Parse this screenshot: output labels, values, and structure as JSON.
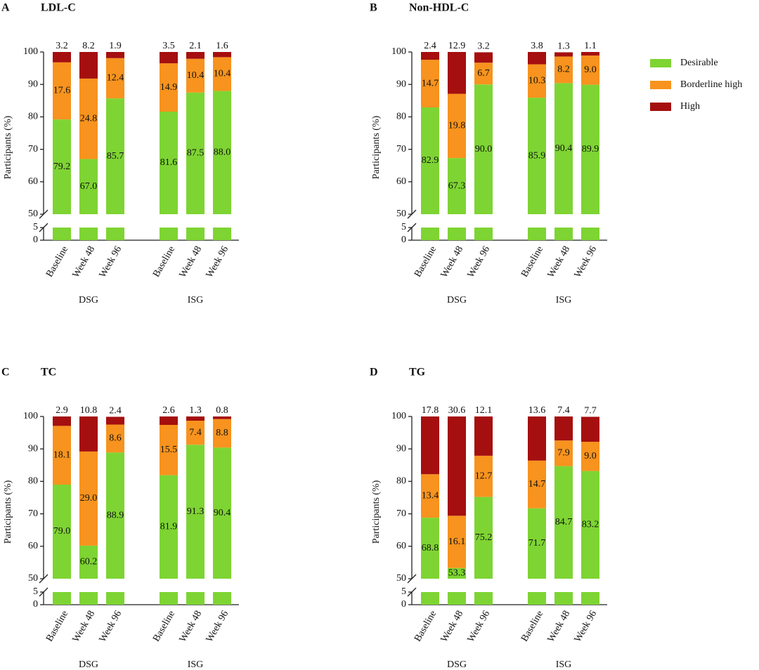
{
  "legend": [
    {
      "name": "Desirable",
      "color": "#7ed433"
    },
    {
      "name": "Borderline high",
      "color": "#f7931e"
    },
    {
      "name": "High",
      "color": "#a50f0f"
    }
  ],
  "chart_data": [
    {
      "type": "bar",
      "stacked": true,
      "panel": "A",
      "title": "LDL-C",
      "ylabel": "Participants (%)",
      "categories": [
        "Baseline",
        "Week 48",
        "Week 96",
        "Baseline",
        "Week 48",
        "Week 96"
      ],
      "groups": [
        "DSG",
        "ISG"
      ],
      "ylim": [
        0,
        100
      ],
      "ybreak": [
        5,
        50
      ],
      "yticks": [
        0,
        5,
        50,
        60,
        70,
        80,
        90,
        100
      ],
      "series": [
        {
          "color": "#7ed433",
          "values": [
            79.2,
            67.0,
            85.7,
            81.6,
            87.5,
            88.0
          ],
          "value_labels": [
            "79.2",
            "67.0",
            "85.7",
            "81.6",
            "87.5",
            "88.0"
          ]
        },
        {
          "color": "#f7931e",
          "values": [
            17.6,
            24.8,
            12.4,
            14.9,
            10.4,
            10.4
          ],
          "value_labels": [
            "17.6",
            "24.8",
            "12.4",
            "14.9",
            "10.4",
            "10.4"
          ]
        },
        {
          "color": "#a50f0f",
          "values": [
            3.2,
            8.2,
            1.9,
            3.5,
            2.1,
            1.6
          ],
          "value_labels": [
            "3.2",
            "8.2",
            "1.9",
            "3.5",
            "2.1",
            "1.6"
          ]
        }
      ]
    },
    {
      "type": "bar",
      "stacked": true,
      "panel": "B",
      "title": "Non-HDL-C",
      "ylabel": "Participants (%)",
      "categories": [
        "Baseline",
        "Week 48",
        "Week 96",
        "Baseline",
        "Week 48",
        "Week 96"
      ],
      "groups": [
        "DSG",
        "ISG"
      ],
      "ylim": [
        0,
        100
      ],
      "ybreak": [
        5,
        50
      ],
      "yticks": [
        0,
        5,
        50,
        60,
        70,
        80,
        90,
        100
      ],
      "series": [
        {
          "color": "#7ed433",
          "values": [
            82.9,
            67.3,
            90.0,
            85.9,
            90.4,
            89.9
          ],
          "value_labels": [
            "82.9",
            "67.3",
            "90.0",
            "85.9",
            "90.4",
            "89.9"
          ]
        },
        {
          "color": "#f7931e",
          "values": [
            14.7,
            19.8,
            6.7,
            10.3,
            8.2,
            9.0
          ],
          "value_labels": [
            "14.7",
            "19.8",
            "6.7",
            "10.3",
            "8.2",
            "9.0"
          ]
        },
        {
          "color": "#a50f0f",
          "values": [
            2.4,
            12.9,
            3.2,
            3.8,
            1.3,
            1.1
          ],
          "value_labels": [
            "2.4",
            "12.9",
            "3.2",
            "3.8",
            "1.3",
            "1.1"
          ]
        }
      ]
    },
    {
      "type": "bar",
      "stacked": true,
      "panel": "C",
      "title": "TC",
      "ylabel": "Participants (%)",
      "categories": [
        "Baseline",
        "Week 48",
        "Week 96",
        "Baseline",
        "Week 48",
        "Week 96"
      ],
      "groups": [
        "DSG",
        "ISG"
      ],
      "ylim": [
        0,
        100
      ],
      "ybreak": [
        5,
        50
      ],
      "yticks": [
        0,
        5,
        50,
        60,
        70,
        80,
        90,
        100
      ],
      "series": [
        {
          "color": "#7ed433",
          "values": [
            79.0,
            60.2,
            88.9,
            81.9,
            91.3,
            90.4
          ],
          "value_labels": [
            "79.0",
            "60.2",
            "88.9",
            "81.9",
            "91.3",
            "90.4"
          ]
        },
        {
          "color": "#f7931e",
          "values": [
            18.1,
            29.0,
            8.6,
            15.5,
            7.4,
            8.8
          ],
          "value_labels": [
            "18.1",
            "29.0",
            "8.6",
            "15.5",
            "7.4",
            "8.8"
          ]
        },
        {
          "color": "#a50f0f",
          "values": [
            2.9,
            10.8,
            2.4,
            2.6,
            1.3,
            0.8
          ],
          "value_labels": [
            "2.9",
            "10.8",
            "2.4",
            "2.6",
            "1.3",
            "0.8"
          ]
        }
      ]
    },
    {
      "type": "bar",
      "stacked": true,
      "panel": "D",
      "title": "TG",
      "ylabel": "Participants (%)",
      "categories": [
        "Baseline",
        "Week 48",
        "Week 96",
        "Baseline",
        "Week 48",
        "Week 96"
      ],
      "groups": [
        "DSG",
        "ISG"
      ],
      "ylim": [
        0,
        100
      ],
      "ybreak": [
        5,
        50
      ],
      "yticks": [
        0,
        5,
        50,
        60,
        70,
        80,
        90,
        100
      ],
      "series": [
        {
          "color": "#7ed433",
          "values": [
            68.8,
            53.3,
            75.2,
            71.7,
            84.7,
            83.2
          ],
          "value_labels": [
            "68.8",
            "53.3",
            "75.2",
            "71.7",
            "84.7",
            "83.2"
          ]
        },
        {
          "color": "#f7931e",
          "values": [
            13.4,
            16.1,
            12.7,
            14.7,
            7.9,
            9.0
          ],
          "value_labels": [
            "13.4",
            "16.1",
            "12.7",
            "14.7",
            "7.9",
            "9.0"
          ]
        },
        {
          "color": "#a50f0f",
          "values": [
            17.8,
            30.6,
            12.1,
            13.6,
            7.4,
            7.7
          ],
          "value_labels": [
            "17.8",
            "30.6",
            "12.1",
            "13.6",
            "7.4",
            "7.7"
          ]
        }
      ]
    }
  ]
}
